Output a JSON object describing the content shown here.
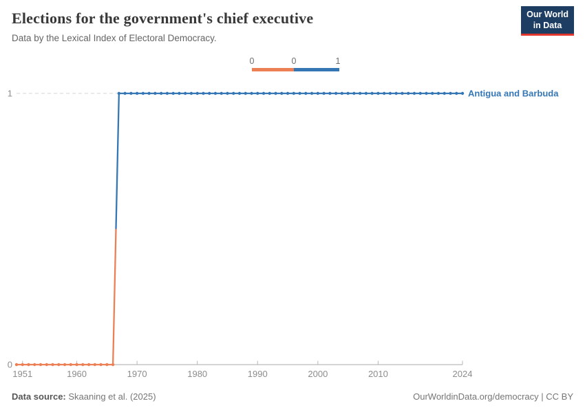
{
  "header": {
    "title": "Elections for the government's chief executive",
    "subtitle": "Data by the Lexical Index of Electoral Democracy.",
    "logo": {
      "line1": "Our World",
      "line2": "in Data"
    }
  },
  "legend": {
    "labels": [
      "0",
      "0",
      "1"
    ],
    "segments": [
      {
        "value": 0,
        "color": "#ed7f54"
      },
      {
        "value": 1,
        "color": "#3577b4"
      }
    ]
  },
  "chart_data": {
    "type": "line",
    "title": "Elections for the government's chief executive",
    "entity": "Antigua and Barbuda",
    "x_range": [
      1950,
      2024
    ],
    "x_ticks": [
      1951,
      1960,
      1970,
      1980,
      1990,
      2000,
      2010,
      2024
    ],
    "y_ticks": [
      0,
      1
    ],
    "ylim": [
      0,
      1
    ],
    "grid": "dashed gridline at y=1, solid axis at y=0",
    "legend_position": "top-center",
    "series": [
      {
        "name": "Antigua and Barbuda",
        "segments": [
          {
            "value": 0,
            "start_year": 1950,
            "end_year": 1966,
            "color": "#ed7f54"
          },
          {
            "value": 1,
            "start_year": 1967,
            "end_year": 2024,
            "color": "#3577b4"
          }
        ]
      }
    ]
  },
  "footer": {
    "source_label": "Data source:",
    "source_value": " Skaaning et al. (2025)",
    "rights": "OurWorldinData.org/democracy | CC BY"
  }
}
